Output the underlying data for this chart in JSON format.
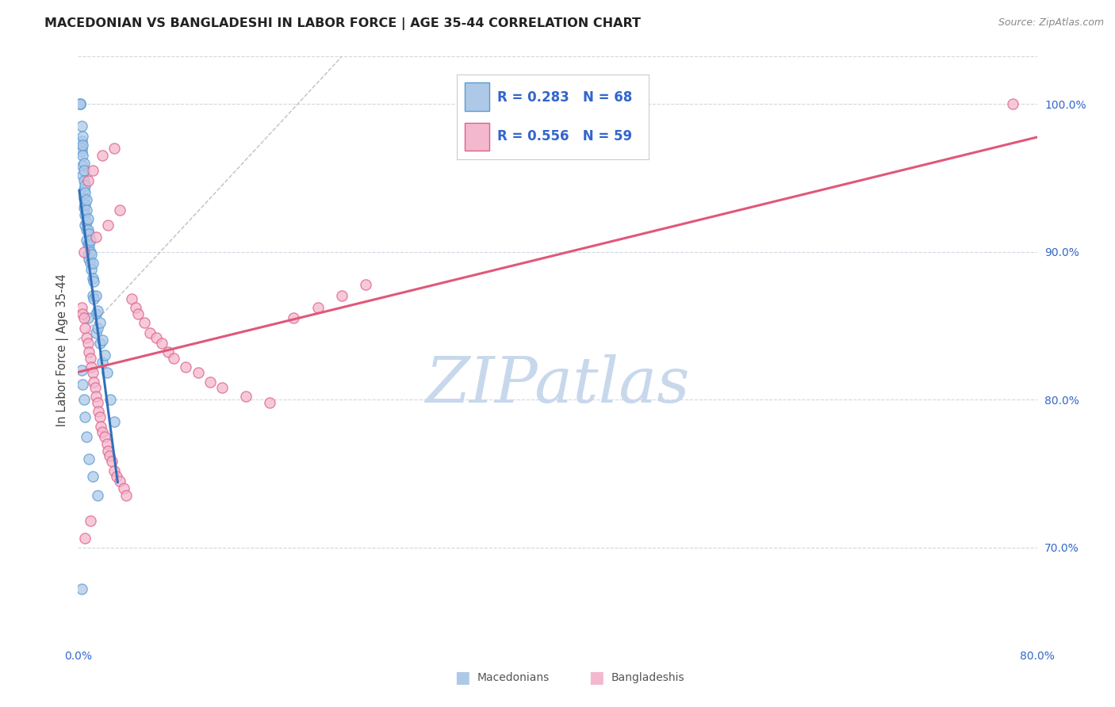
{
  "title": "MACEDONIAN VS BANGLADESHI IN LABOR FORCE | AGE 35-44 CORRELATION CHART",
  "source": "Source: ZipAtlas.com",
  "ylabel": "In Labor Force | Age 35-44",
  "xlim": [
    0.0,
    0.8
  ],
  "ylim": [
    0.635,
    1.032
  ],
  "xticks": [
    0.0,
    0.1,
    0.2,
    0.3,
    0.4,
    0.5,
    0.6,
    0.7,
    0.8
  ],
  "xtick_labels": [
    "0.0%",
    "",
    "",
    "",
    "",
    "",
    "",
    "",
    "80.0%"
  ],
  "yticks": [
    0.7,
    0.8,
    0.9,
    1.0
  ],
  "ytick_labels": [
    "70.0%",
    "80.0%",
    "90.0%",
    "100.0%"
  ],
  "blue_face": "#aec9e8",
  "blue_edge": "#5b9bd5",
  "pink_face": "#f4b8ce",
  "pink_edge": "#e0608a",
  "blue_line": "#3070b8",
  "pink_line": "#e05878",
  "gray_dash": "#c0c0c0",
  "watermark_color": "#c8d8ec",
  "background": "#ffffff",
  "legend_text_color": "#3366cc",
  "grid_color": "#d0d8e0",
  "marker_size": 90,
  "marker_alpha": 0.75,
  "macedonian_x": [
    0.002,
    0.002,
    0.002,
    0.003,
    0.003,
    0.003,
    0.003,
    0.004,
    0.004,
    0.004,
    0.004,
    0.004,
    0.005,
    0.005,
    0.005,
    0.005,
    0.005,
    0.005,
    0.006,
    0.006,
    0.006,
    0.006,
    0.006,
    0.007,
    0.007,
    0.007,
    0.007,
    0.007,
    0.008,
    0.008,
    0.008,
    0.008,
    0.009,
    0.009,
    0.009,
    0.01,
    0.01,
    0.01,
    0.011,
    0.011,
    0.012,
    0.012,
    0.012,
    0.013,
    0.013,
    0.015,
    0.015,
    0.015,
    0.016,
    0.016,
    0.018,
    0.018,
    0.02,
    0.02,
    0.022,
    0.024,
    0.027,
    0.03,
    0.003,
    0.004,
    0.005,
    0.006,
    0.007,
    0.009,
    0.012,
    0.016,
    0.003,
    0.008
  ],
  "macedonian_y": [
    1.0,
    1.0,
    1.0,
    0.985,
    0.975,
    0.97,
    0.968,
    0.978,
    0.972,
    0.965,
    0.958,
    0.952,
    0.96,
    0.955,
    0.948,
    0.942,
    0.936,
    0.93,
    0.945,
    0.94,
    0.932,
    0.925,
    0.918,
    0.935,
    0.928,
    0.92,
    0.915,
    0.908,
    0.922,
    0.915,
    0.905,
    0.898,
    0.912,
    0.904,
    0.895,
    0.908,
    0.9,
    0.892,
    0.898,
    0.888,
    0.892,
    0.882,
    0.87,
    0.88,
    0.868,
    0.87,
    0.858,
    0.845,
    0.86,
    0.848,
    0.852,
    0.838,
    0.84,
    0.825,
    0.83,
    0.818,
    0.8,
    0.785,
    0.82,
    0.81,
    0.8,
    0.788,
    0.775,
    0.76,
    0.748,
    0.735,
    0.672,
    0.855
  ],
  "bangladeshi_x": [
    0.003,
    0.004,
    0.005,
    0.006,
    0.007,
    0.008,
    0.009,
    0.01,
    0.011,
    0.012,
    0.013,
    0.014,
    0.015,
    0.016,
    0.017,
    0.018,
    0.019,
    0.02,
    0.022,
    0.024,
    0.025,
    0.026,
    0.028,
    0.03,
    0.032,
    0.035,
    0.038,
    0.04,
    0.045,
    0.048,
    0.05,
    0.055,
    0.06,
    0.065,
    0.07,
    0.075,
    0.08,
    0.09,
    0.1,
    0.11,
    0.12,
    0.14,
    0.16,
    0.18,
    0.2,
    0.22,
    0.24,
    0.005,
    0.015,
    0.025,
    0.035,
    0.008,
    0.012,
    0.02,
    0.03,
    0.006,
    0.01,
    0.78
  ],
  "bangladeshi_y": [
    0.862,
    0.858,
    0.855,
    0.848,
    0.842,
    0.838,
    0.832,
    0.828,
    0.822,
    0.818,
    0.812,
    0.808,
    0.802,
    0.798,
    0.792,
    0.788,
    0.782,
    0.778,
    0.775,
    0.77,
    0.765,
    0.762,
    0.758,
    0.752,
    0.748,
    0.745,
    0.74,
    0.735,
    0.868,
    0.862,
    0.858,
    0.852,
    0.845,
    0.842,
    0.838,
    0.832,
    0.828,
    0.822,
    0.818,
    0.812,
    0.808,
    0.802,
    0.798,
    0.855,
    0.862,
    0.87,
    0.878,
    0.9,
    0.91,
    0.918,
    0.928,
    0.948,
    0.955,
    0.965,
    0.97,
    0.706,
    0.718,
    1.0
  ]
}
